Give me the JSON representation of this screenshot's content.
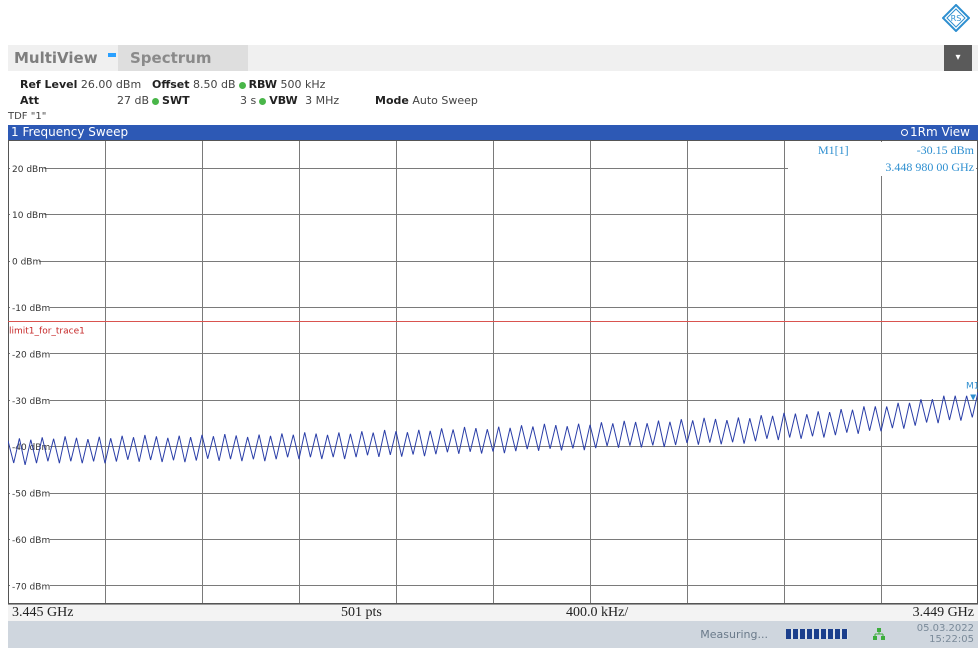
{
  "tabs": {
    "multiview": "MultiView",
    "spectrum": "Spectrum"
  },
  "params": {
    "ref_level_label": "Ref Level",
    "ref_level_value": "26.00 dBm",
    "offset_label": "Offset",
    "offset_value": "8.50 dB",
    "rbw_label": "RBW",
    "rbw_value": "500 kHz",
    "att_label": "Att",
    "att_value": "27 dB",
    "swt_label": "SWT",
    "swt_value": "3 s",
    "vbw_label": "VBW",
    "vbw_value": "3 MHz",
    "mode_label": "Mode",
    "mode_value": "Auto Sweep",
    "tdf": "TDF \"1\""
  },
  "diagram": {
    "title": "1 Frequency Sweep",
    "view": "1Rm View"
  },
  "marker": {
    "name": "M1[1]",
    "level": "-30.15 dBm",
    "freq": "3.448 980 00 GHz",
    "label": "M1"
  },
  "limit_line": {
    "label": "limit1_for_trace1",
    "level_dbm": -13,
    "color": "#d9534f"
  },
  "footer": {
    "start": "3.445 GHz",
    "points": "501 pts",
    "span_per_div": "400.0 kHz/",
    "stop": "3.449 GHz"
  },
  "status": {
    "measuring": "Measuring...",
    "date": "05.03.2022",
    "time": "15:22:05",
    "progress": 1.0
  },
  "colors": {
    "trace": "#2a3ea8",
    "header": "#2d59b5",
    "marker": "#2e8fd0"
  },
  "chart_data": {
    "type": "line",
    "x_range": [
      3.445,
      3.449
    ],
    "x_unit": "GHz",
    "ylim": [
      -74,
      26
    ],
    "y_ticks": [
      "20 dBm",
      "10 dBm",
      "0 dBm",
      "-10 dBm",
      "-20 dBm",
      "-30 dBm",
      "-40 dBm",
      "-50 dBm",
      "-60 dBm",
      "-70 dBm"
    ],
    "y_tick_values": [
      20,
      10,
      0,
      -10,
      -20,
      -30,
      -40,
      -50,
      -60,
      -70
    ],
    "grid": true,
    "series": [
      {
        "values_summary": [
          [
            3.445,
            -41.0
          ],
          [
            3.4455,
            -40.5
          ],
          [
            3.446,
            -40.2
          ],
          [
            3.4465,
            -39.5
          ],
          [
            3.447,
            -38.5
          ],
          [
            3.4475,
            -37.5
          ],
          [
            3.448,
            -36.5
          ],
          [
            3.4485,
            -34.5
          ],
          [
            3.449,
            -31.0
          ]
        ]
      }
    ],
    "marker_point": [
      3.44898,
      -30.15
    ]
  }
}
